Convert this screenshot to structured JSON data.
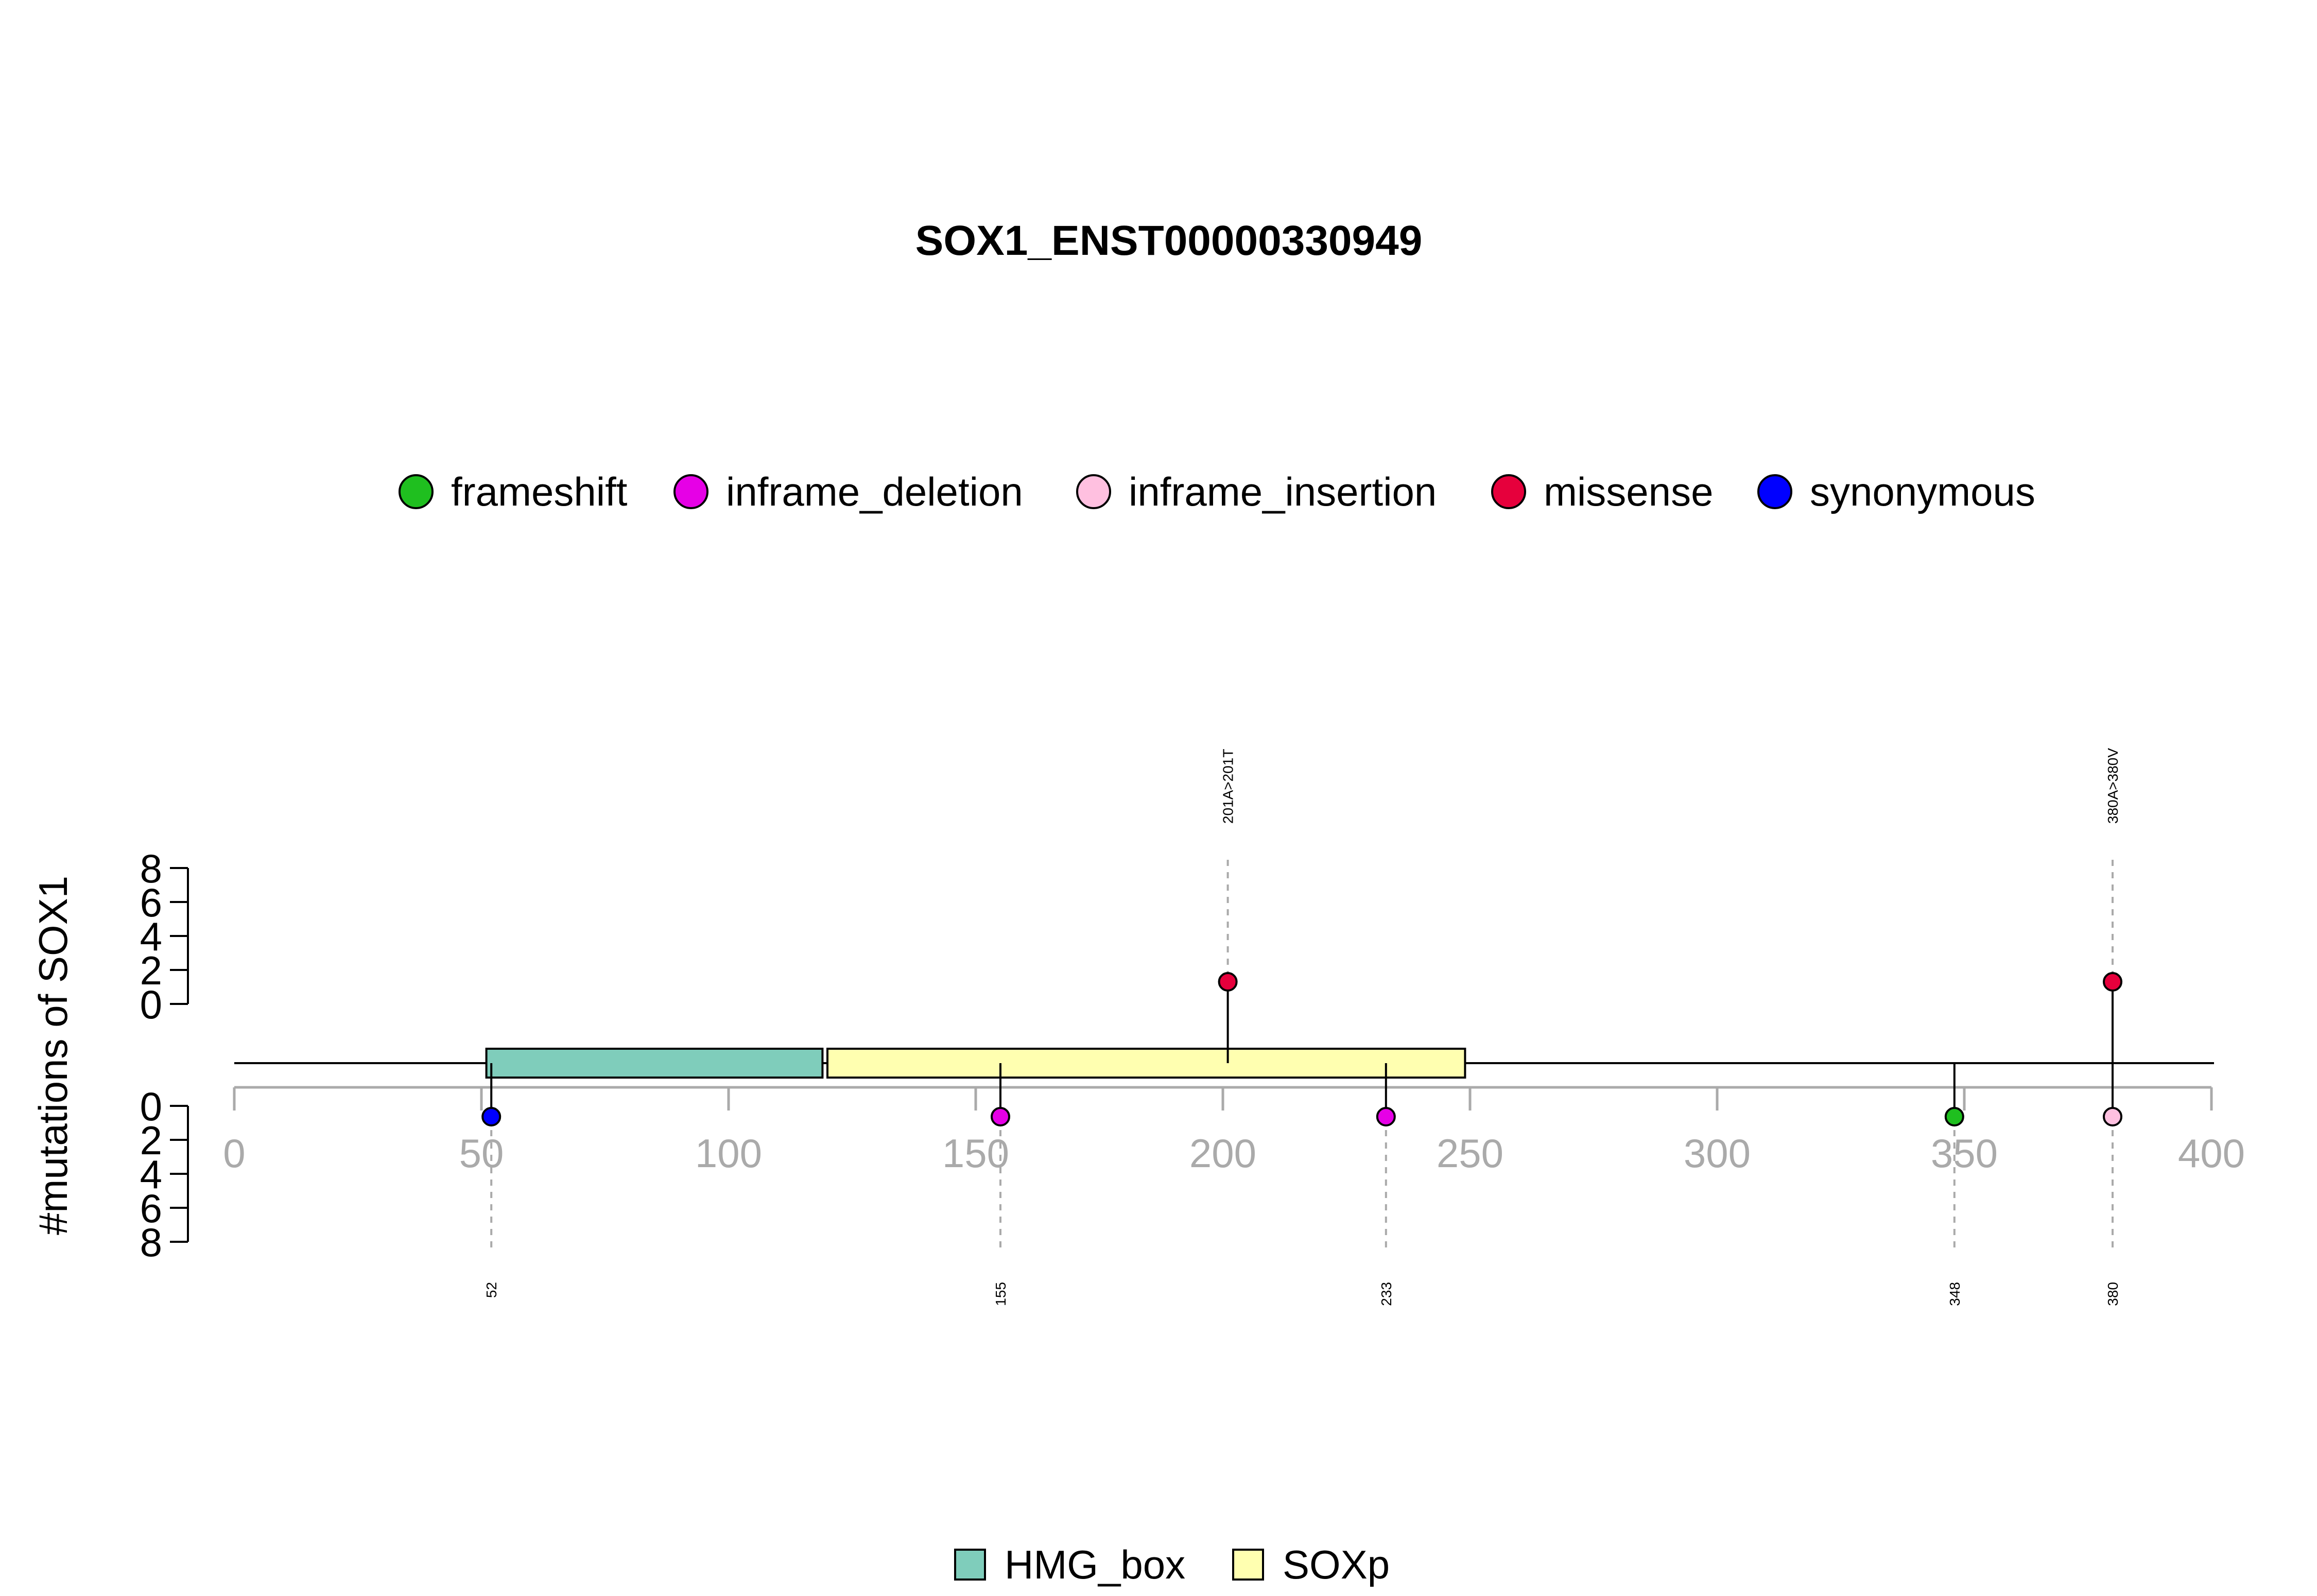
{
  "chart_data": {
    "type": "lollipop",
    "title": "SOX1_ENST00000330949",
    "ylabel": "#mutations of SOX1",
    "xlim": [
      0,
      400
    ],
    "x_ticks": [
      0,
      50,
      100,
      150,
      200,
      250,
      300,
      350,
      400
    ],
    "y_ticks": [
      0,
      2,
      4,
      6,
      8
    ],
    "protein_length": 400,
    "mutation_types": [
      {
        "name": "frameshift",
        "color": "#1fbf1f"
      },
      {
        "name": "inframe_deletion",
        "color": "#e600e6"
      },
      {
        "name": "inframe_insertion",
        "color": "#ffc0e0"
      },
      {
        "name": "missense",
        "color": "#e6003c"
      },
      {
        "name": "synonymous",
        "color": "#0000ff"
      }
    ],
    "domains": [
      {
        "name": "HMG_box",
        "start": 51,
        "end": 119,
        "color": "#7fcdbb"
      },
      {
        "name": "SOXp",
        "start": 120,
        "end": 249,
        "color": "#ffffb0"
      }
    ],
    "top_mutations": [
      {
        "position": 201,
        "count": 1,
        "type": "missense",
        "label": "201A>201T"
      },
      {
        "position": 380,
        "count": 1,
        "type": "missense",
        "label": "380A>380V"
      }
    ],
    "bottom_mutations": [
      {
        "position": 52,
        "count": 1,
        "type": "synonymous",
        "label": "52"
      },
      {
        "position": 155,
        "count": 1,
        "type": "inframe_deletion",
        "label": "155"
      },
      {
        "position": 233,
        "count": 1,
        "type": "inframe_deletion",
        "label": "233"
      },
      {
        "position": 348,
        "count": 1,
        "type": "frameshift",
        "label": "348"
      },
      {
        "position": 380,
        "count": 1,
        "type": "inframe_insertion",
        "label": "380"
      }
    ]
  }
}
